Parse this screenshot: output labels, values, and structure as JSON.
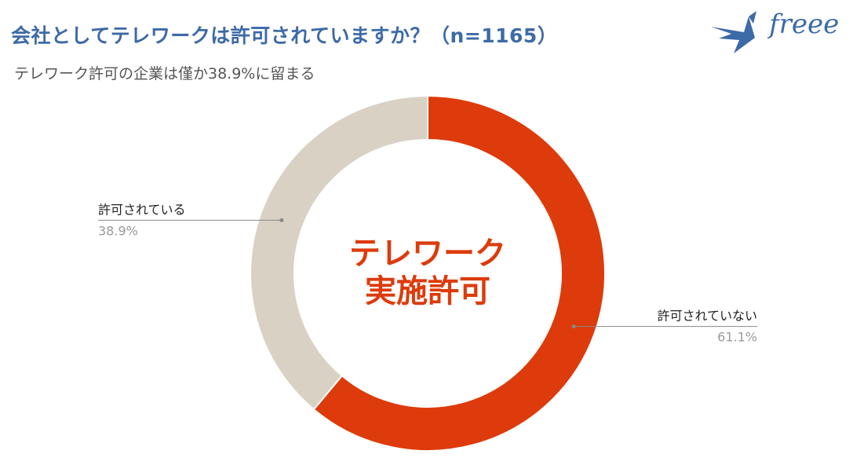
{
  "title": "会社としてテレワークは許可されていますか？（n=1165）",
  "subtitle": "テレワーク許可の企業は僅か38.9%に留まる",
  "brand": {
    "name": "freee",
    "color": "#3D6AA8"
  },
  "center_label": {
    "line1": "テレワーク",
    "line2": "実施許可",
    "color": "#DD3B0B"
  },
  "chart_data": {
    "type": "pie",
    "donut": true,
    "title": "会社としてテレワークは許可されていますか？（n=1165）",
    "n": 1165,
    "categories": [
      "許可されていない",
      "許可されている"
    ],
    "values": [
      61.1,
      38.9
    ],
    "value_labels": [
      "61.1%",
      "38.9%"
    ],
    "colors": [
      "#DD3B0B",
      "#D9D2C4"
    ]
  }
}
